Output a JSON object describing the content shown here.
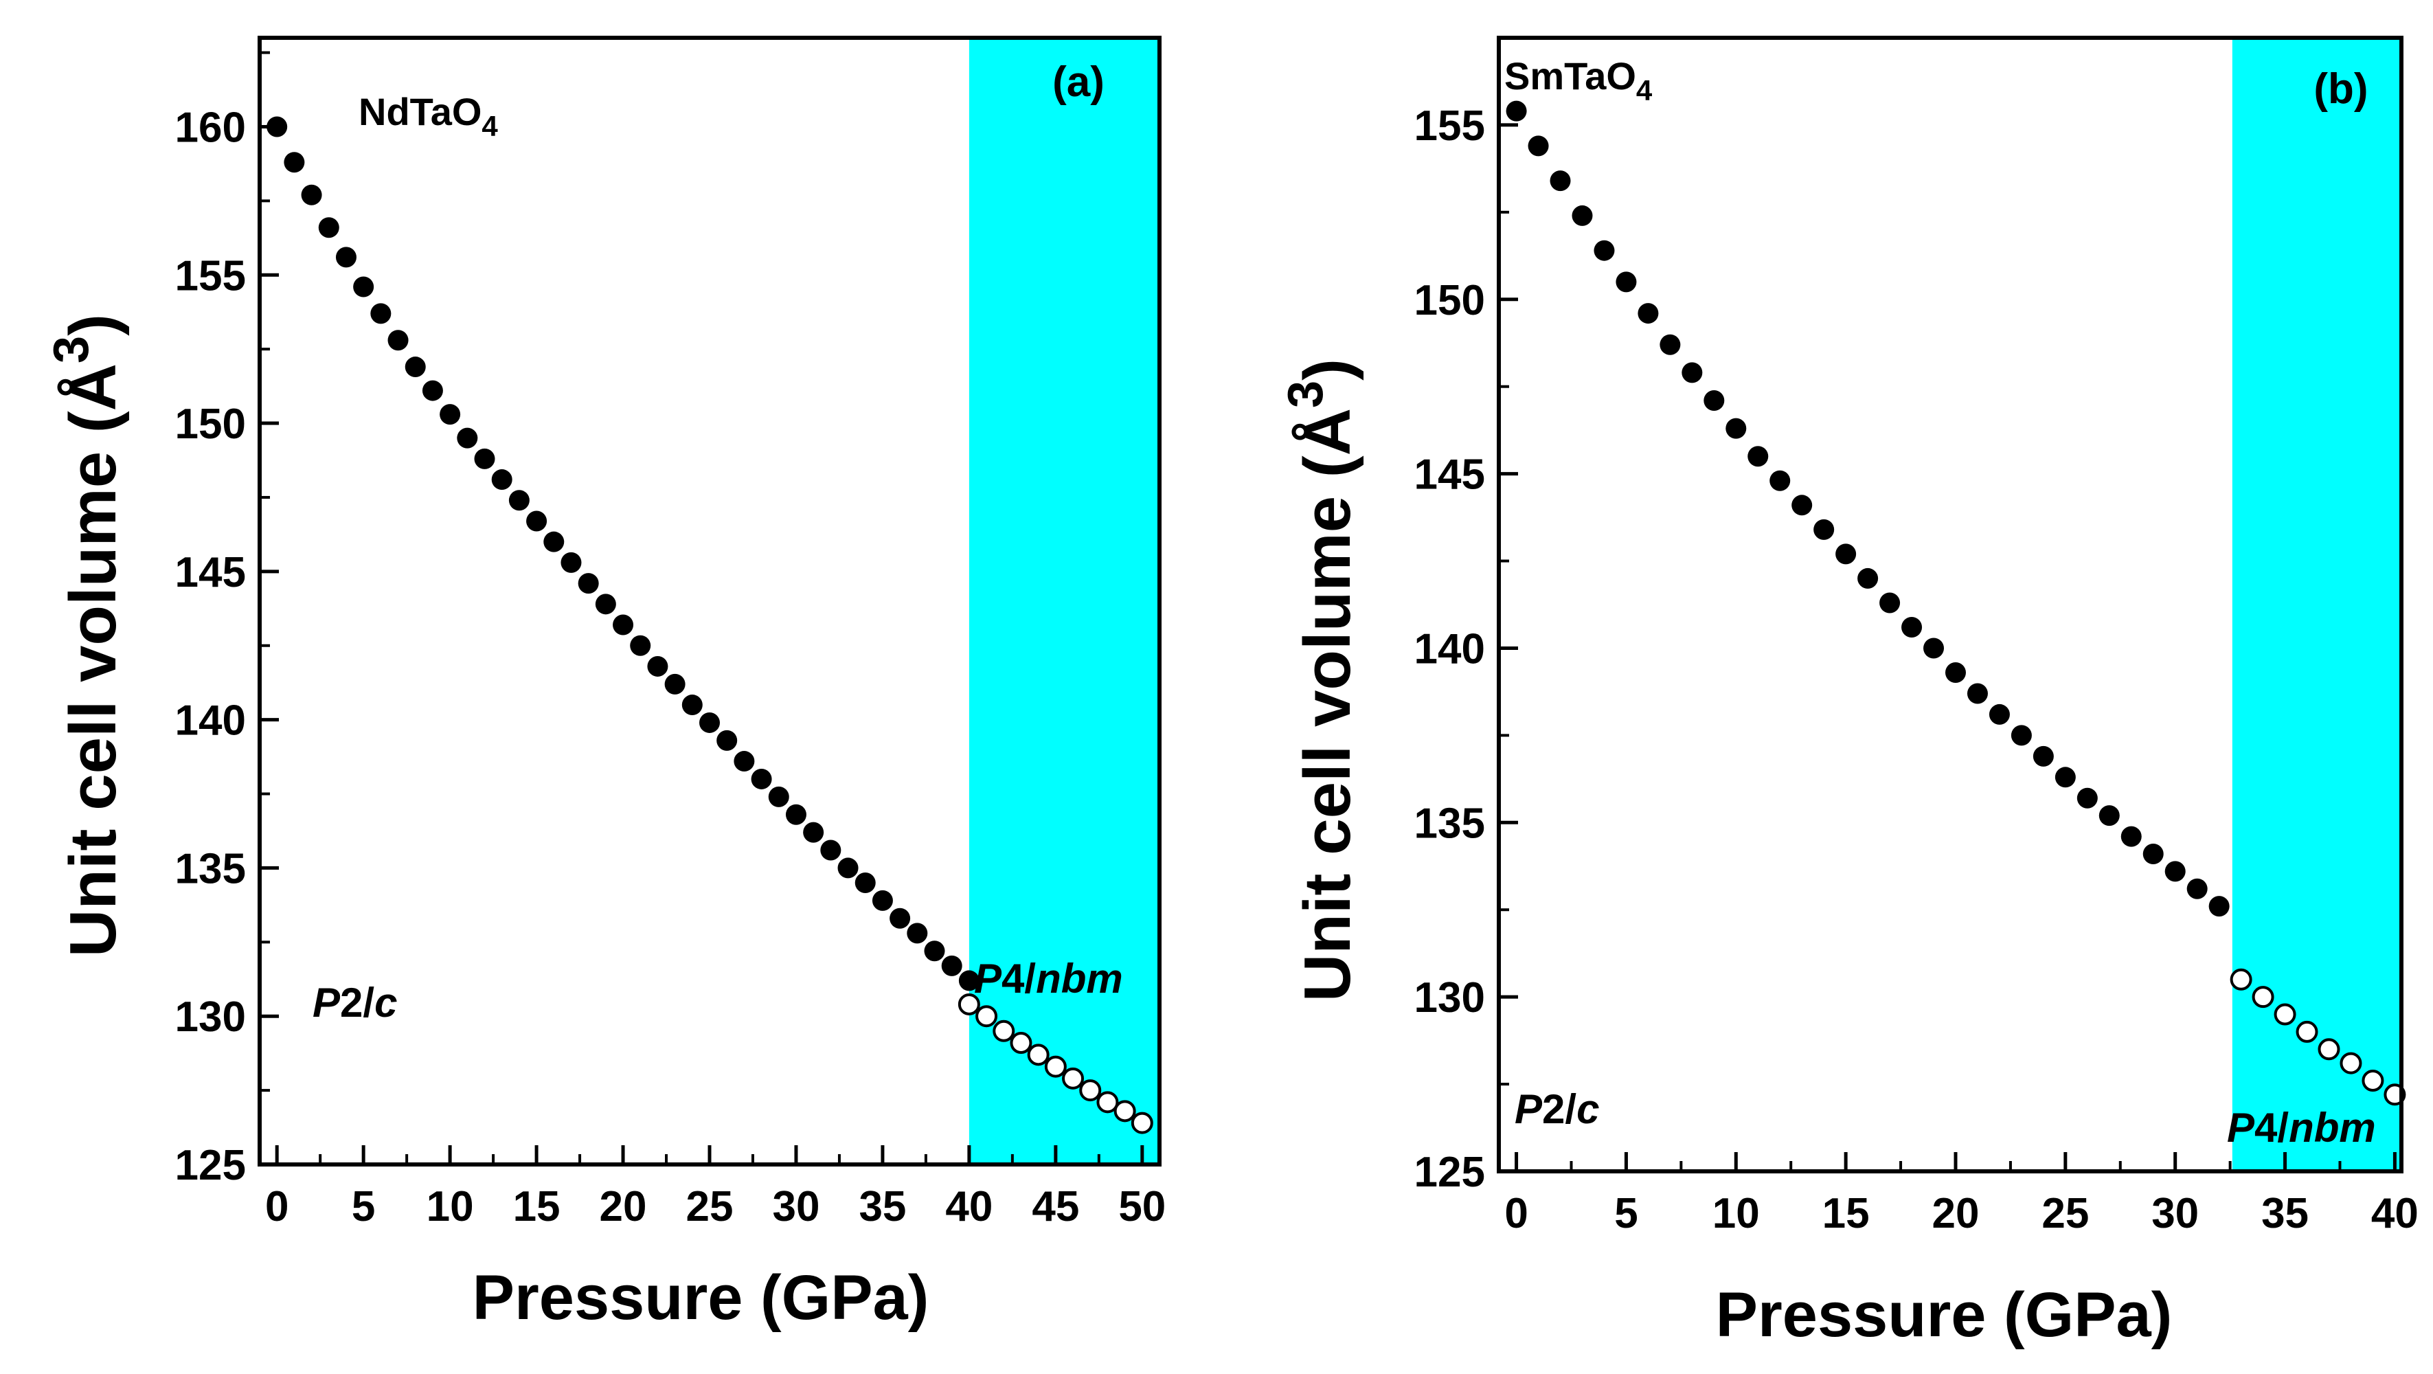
{
  "colors": {
    "highlight": "#00ffff",
    "filled_marker": "#000000",
    "open_marker_fill": "#ffffff",
    "axis": "#000000"
  },
  "chart_data": [
    {
      "type": "scatter",
      "panel_label": "(a)",
      "compound": {
        "base": "NdTaO",
        "subscript": "4"
      },
      "xlabel": "Pressure (GPa)",
      "ylabel": {
        "text": "Unit cell volume (Å",
        "superscript": "3",
        "close": ")"
      },
      "xlim": [
        -1,
        51
      ],
      "ylim": [
        125,
        163
      ],
      "xticks": [
        0,
        5,
        10,
        15,
        20,
        25,
        30,
        35,
        40,
        45,
        50
      ],
      "yticks": [
        125,
        130,
        135,
        140,
        145,
        150,
        155,
        160
      ],
      "highlight_x_start": 40,
      "phase_low_label": {
        "italic": "P",
        "normal": "2/",
        "italic2": "c"
      },
      "phase_high_label": {
        "italic": "P",
        "normal": "4/",
        "italic2": "nbm"
      },
      "series": [
        {
          "name": "P2/c",
          "style": "filled",
          "x": [
            0,
            1,
            2,
            3,
            4,
            5,
            6,
            7,
            8,
            9,
            10,
            11,
            12,
            13,
            14,
            15,
            16,
            17,
            18,
            19,
            20,
            21,
            22,
            23,
            24,
            25,
            26,
            27,
            28,
            29,
            30,
            31,
            32,
            33,
            34,
            35,
            36,
            37,
            38,
            39,
            40
          ],
          "y": [
            160.0,
            158.8,
            157.7,
            156.6,
            155.6,
            154.6,
            153.7,
            152.8,
            151.9,
            151.1,
            150.3,
            149.5,
            148.8,
            148.1,
            147.4,
            146.7,
            146.0,
            145.3,
            144.6,
            143.9,
            143.2,
            142.5,
            141.8,
            141.2,
            140.5,
            139.9,
            139.3,
            138.6,
            138.0,
            137.4,
            136.8,
            136.2,
            135.6,
            135.0,
            134.5,
            133.9,
            133.3,
            132.8,
            132.2,
            131.7,
            131.2
          ]
        },
        {
          "name": "P4/nbm",
          "style": "open",
          "x": [
            40,
            41,
            42,
            43,
            44,
            45,
            46,
            47,
            48,
            49,
            50
          ],
          "y": [
            130.4,
            130.0,
            129.5,
            129.1,
            128.7,
            128.3,
            127.9,
            127.5,
            127.1,
            126.8,
            126.4
          ]
        }
      ]
    },
    {
      "type": "scatter",
      "panel_label": "(b)",
      "compound": {
        "base": "SmTaO",
        "subscript": "4"
      },
      "xlabel": "Pressure (GPa)",
      "ylabel": {
        "text": "Unit cell volume (Å",
        "superscript": "3",
        "close": ")"
      },
      "xlim": [
        -0.8,
        40.3
      ],
      "ylim": [
        125,
        157.5
      ],
      "xticks": [
        0,
        5,
        10,
        15,
        20,
        25,
        30,
        35,
        40
      ],
      "yticks": [
        125,
        130,
        135,
        140,
        145,
        150,
        155
      ],
      "highlight_x_start": 32.6,
      "phase_low_label": {
        "italic": "P",
        "normal": "2/",
        "italic2": "c"
      },
      "phase_high_label": {
        "italic": "P",
        "normal": "4/",
        "italic2": "nbm"
      },
      "series": [
        {
          "name": "P2/c",
          "style": "filled",
          "x": [
            0,
            1,
            2,
            3,
            4,
            5,
            6,
            7,
            8,
            9,
            10,
            11,
            12,
            13,
            14,
            15,
            16,
            17,
            18,
            19,
            20,
            21,
            22,
            23,
            24,
            25,
            26,
            27,
            28,
            29,
            30,
            31,
            32
          ],
          "y": [
            155.4,
            154.4,
            153.4,
            152.4,
            151.4,
            150.5,
            149.6,
            148.7,
            147.9,
            147.1,
            146.3,
            145.5,
            144.8,
            144.1,
            143.4,
            142.7,
            142.0,
            141.3,
            140.6,
            140.0,
            139.3,
            138.7,
            138.1,
            137.5,
            136.9,
            136.3,
            135.7,
            135.2,
            134.6,
            134.1,
            133.6,
            133.1,
            132.6
          ]
        },
        {
          "name": "P4/nbm",
          "style": "open",
          "x": [
            33,
            34,
            35,
            36,
            37,
            38,
            39,
            40
          ],
          "y": [
            130.5,
            130.0,
            129.5,
            129.0,
            128.5,
            128.1,
            127.6,
            127.2
          ]
        }
      ]
    }
  ]
}
